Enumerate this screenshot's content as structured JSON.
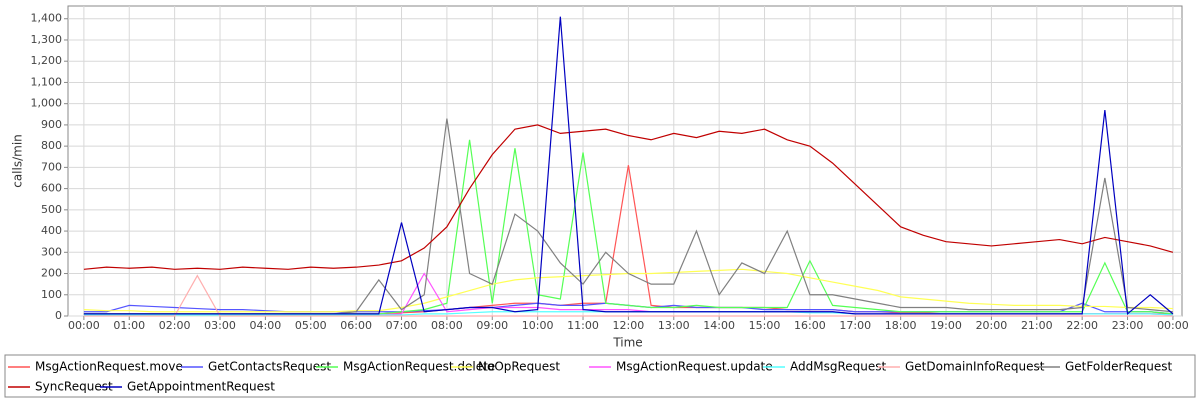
{
  "chart_data": {
    "type": "line",
    "y_label": "calls/min",
    "x_label": "Time",
    "xlim": [
      -0.35,
      24.2
    ],
    "ylim": [
      0,
      1460
    ],
    "grid": true,
    "legend": "bottom",
    "xticks": [
      {
        "value": 0,
        "label": "00:00"
      },
      {
        "value": 1,
        "label": "01:00"
      },
      {
        "value": 2,
        "label": "02:00"
      },
      {
        "value": 3,
        "label": "03:00"
      },
      {
        "value": 4,
        "label": "04:00"
      },
      {
        "value": 5,
        "label": "05:00"
      },
      {
        "value": 6,
        "label": "06:00"
      },
      {
        "value": 7,
        "label": "07:00"
      },
      {
        "value": 8,
        "label": "08:00"
      },
      {
        "value": 9,
        "label": "09:00"
      },
      {
        "value": 10,
        "label": "10:00"
      },
      {
        "value": 11,
        "label": "11:00"
      },
      {
        "value": 12,
        "label": "12:00"
      },
      {
        "value": 13,
        "label": "13:00"
      },
      {
        "value": 14,
        "label": "14:00"
      },
      {
        "value": 15,
        "label": "15:00"
      },
      {
        "value": 16,
        "label": "16:00"
      },
      {
        "value": 17,
        "label": "17:00"
      },
      {
        "value": 18,
        "label": "18:00"
      },
      {
        "value": 19,
        "label": "19:00"
      },
      {
        "value": 20,
        "label": "20:00"
      },
      {
        "value": 21,
        "label": "21:00"
      },
      {
        "value": 22,
        "label": "22:00"
      },
      {
        "value": 23,
        "label": "23:00"
      },
      {
        "value": 24,
        "label": "00:00"
      }
    ],
    "yticks": [
      0,
      100,
      200,
      300,
      400,
      500,
      600,
      700,
      800,
      900,
      {
        "value": 1000,
        "label": "1,000"
      },
      {
        "value": 1100,
        "label": "1,100"
      },
      {
        "value": 1200,
        "label": "1,200"
      },
      {
        "value": 1300,
        "label": "1,300"
      },
      {
        "value": 1400,
        "label": "1,400"
      }
    ],
    "x": [
      0,
      0.5,
      1,
      1.5,
      2,
      2.5,
      3,
      3.5,
      4,
      4.5,
      5,
      5.5,
      6,
      6.5,
      7,
      7.5,
      8,
      8.5,
      9,
      9.5,
      10,
      10.5,
      11,
      11.5,
      12,
      12.5,
      13,
      13.5,
      14,
      14.5,
      15,
      15.5,
      16,
      16.5,
      17,
      17.5,
      18,
      18.5,
      19,
      19.5,
      20,
      20.5,
      21,
      21.5,
      22,
      22.5,
      23,
      23.5,
      24
    ],
    "series": [
      {
        "name": "MsgActionRequest.move",
        "color": "#ff5555",
        "values": [
          10,
          10,
          10,
          10,
          10,
          10,
          10,
          10,
          10,
          10,
          10,
          10,
          10,
          10,
          15,
          20,
          30,
          40,
          50,
          60,
          60,
          50,
          60,
          60,
          710,
          50,
          40,
          40,
          40,
          40,
          40,
          30,
          30,
          30,
          20,
          20,
          15,
          15,
          10,
          10,
          10,
          10,
          10,
          10,
          10,
          10,
          10,
          10,
          10
        ]
      },
      {
        "name": "GetContactsRequest",
        "color": "#5555ff",
        "values": [
          20,
          20,
          50,
          45,
          40,
          35,
          30,
          30,
          25,
          20,
          20,
          20,
          20,
          20,
          20,
          25,
          30,
          40,
          40,
          50,
          60,
          50,
          50,
          60,
          50,
          40,
          50,
          40,
          40,
          40,
          30,
          30,
          30,
          30,
          20,
          20,
          20,
          20,
          20,
          20,
          20,
          20,
          20,
          20,
          60,
          20,
          20,
          20,
          10
        ]
      },
      {
        "name": "MsgActionRequest.delete",
        "color": "#55ff55",
        "values": [
          10,
          10,
          10,
          10,
          10,
          10,
          10,
          10,
          10,
          10,
          10,
          10,
          10,
          10,
          20,
          30,
          60,
          830,
          60,
          790,
          100,
          80,
          770,
          60,
          50,
          40,
          40,
          50,
          40,
          40,
          40,
          40,
          260,
          50,
          40,
          30,
          20,
          20,
          20,
          20,
          20,
          20,
          20,
          20,
          20,
          250,
          20,
          20,
          10
        ]
      },
      {
        "name": "NoOpRequest",
        "color": "#ffff55",
        "values": [
          30,
          25,
          25,
          20,
          20,
          20,
          20,
          20,
          20,
          20,
          20,
          20,
          25,
          25,
          40,
          60,
          90,
          120,
          150,
          170,
          180,
          185,
          190,
          195,
          200,
          200,
          205,
          210,
          215,
          220,
          210,
          200,
          180,
          160,
          140,
          120,
          90,
          80,
          70,
          60,
          55,
          50,
          50,
          50,
          45,
          45,
          40,
          40,
          35
        ]
      },
      {
        "name": "MsgActionRequest.update",
        "color": "#ff55ff",
        "values": [
          5,
          5,
          5,
          5,
          5,
          5,
          5,
          5,
          5,
          5,
          5,
          5,
          5,
          5,
          10,
          200,
          20,
          30,
          40,
          40,
          40,
          30,
          30,
          30,
          30,
          20,
          20,
          20,
          20,
          20,
          20,
          20,
          20,
          20,
          10,
          10,
          10,
          10,
          10,
          10,
          10,
          10,
          10,
          10,
          10,
          10,
          10,
          10,
          5
        ]
      },
      {
        "name": "AddMsgRequest",
        "color": "#55ffff",
        "values": [
          5,
          5,
          5,
          5,
          5,
          5,
          5,
          5,
          5,
          5,
          5,
          5,
          5,
          5,
          5,
          10,
          10,
          15,
          20,
          20,
          20,
          20,
          20,
          20,
          20,
          20,
          20,
          20,
          20,
          20,
          20,
          20,
          15,
          15,
          10,
          10,
          10,
          10,
          10,
          10,
          10,
          10,
          10,
          10,
          10,
          10,
          10,
          10,
          5
        ]
      },
      {
        "name": "GetDomainInfoRequest",
        "color": "#ffafaf",
        "values": [
          0,
          0,
          0,
          0,
          0,
          190,
          0,
          0,
          0,
          0,
          0,
          0,
          0,
          0,
          0,
          0,
          0,
          0,
          0,
          0,
          0,
          0,
          0,
          0,
          0,
          0,
          0,
          0,
          0,
          0,
          0,
          0,
          0,
          0,
          0,
          0,
          0,
          0,
          0,
          0,
          0,
          0,
          0,
          0,
          0,
          0,
          0,
          0,
          0
        ]
      },
      {
        "name": "GetFolderRequest",
        "color": "#808080",
        "values": [
          10,
          10,
          10,
          10,
          10,
          10,
          10,
          10,
          10,
          10,
          10,
          10,
          20,
          170,
          30,
          100,
          930,
          200,
          150,
          480,
          400,
          250,
          150,
          300,
          200,
          150,
          150,
          400,
          100,
          250,
          200,
          400,
          100,
          100,
          80,
          60,
          40,
          40,
          40,
          30,
          30,
          30,
          30,
          30,
          40,
          650,
          40,
          30,
          20
        ]
      },
      {
        "name": "SyncRequest",
        "color": "#c00000",
        "values": [
          220,
          230,
          225,
          230,
          220,
          225,
          220,
          230,
          225,
          220,
          230,
          225,
          230,
          240,
          260,
          320,
          420,
          600,
          760,
          880,
          900,
          860,
          870,
          880,
          850,
          830,
          860,
          840,
          870,
          860,
          880,
          830,
          800,
          720,
          620,
          520,
          420,
          380,
          350,
          340,
          330,
          340,
          350,
          360,
          340,
          370,
          350,
          330,
          300
        ]
      },
      {
        "name": "GetAppointmentRequest",
        "color": "#0000c0",
        "values": [
          10,
          10,
          10,
          10,
          10,
          10,
          10,
          10,
          10,
          10,
          10,
          10,
          10,
          10,
          440,
          20,
          30,
          40,
          40,
          20,
          30,
          1410,
          30,
          20,
          20,
          20,
          20,
          20,
          20,
          20,
          20,
          20,
          20,
          20,
          10,
          10,
          10,
          10,
          10,
          10,
          10,
          10,
          10,
          10,
          10,
          970,
          10,
          100,
          10
        ]
      }
    ]
  }
}
